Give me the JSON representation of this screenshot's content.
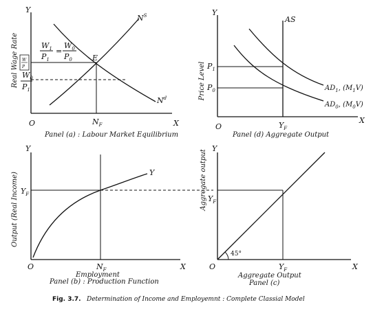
{
  "figure": {
    "number": "Fig. 3.7.",
    "caption": "Determination of Income and Employemnt : Complete Classial Model"
  },
  "panel_a": {
    "caption": "Panel (a) : Labour Market Equilibrium",
    "y_axis_letter": "Y",
    "x_axis_letter": "X",
    "origin": "O",
    "ylabel": "Real Wage Rate",
    "supply_curve": "N",
    "supply_sup": "S",
    "demand_curve": "N",
    "demand_sup": "d",
    "equilibrium": "E",
    "nf": "N",
    "nf_sub": "F",
    "eq_w1": "W",
    "eq_w1_sub": "1",
    "eq_p1": "P",
    "eq_p1_sub": "1",
    "eq_equals": "=",
    "eq_w0": "W",
    "eq_w0_sub": "0",
    "eq_p0": "P",
    "eq_p0_sub": "0",
    "low_w0": "W",
    "low_w0_sub": "0",
    "low_p1": "P",
    "low_p1_sub": "1",
    "tick_w": "W",
    "tick_p": "P"
  },
  "panel_d": {
    "caption": "Panel (d) Aggregate Output",
    "y_axis_letter": "Y",
    "x_axis_letter": "X",
    "origin": "O",
    "ylabel": "Price Level",
    "as_label": "AS",
    "p1": "P",
    "p1_sub": "1",
    "p0": "P",
    "p0_sub": "0",
    "yf": "Y",
    "yf_sub": "F",
    "ad1": "AD",
    "ad1_sub": "1",
    "ad1_args": ", (M",
    "ad1_args_sub": "1",
    "ad1_tail": "V)",
    "ad0": "AD",
    "ad0_sub": "0",
    "ad0_args": ", (M",
    "ad0_args_sub": "0",
    "ad0_tail": "V)"
  },
  "panel_b": {
    "caption": "Panel (b) : Production Function",
    "y_axis_letter": "Y",
    "x_axis_letter": "X",
    "origin": "O",
    "ylabel": "Output (Real Income)",
    "xlabel": "Employment",
    "curve": "Y",
    "yf": "Y",
    "yf_sub": "F",
    "nf": "N",
    "nf_sub": "F"
  },
  "panel_c": {
    "caption": "Panel (c)",
    "y_axis_letter": "Y",
    "x_axis_letter": "X",
    "origin": "O",
    "ylabel": "Aggregate output",
    "xlabel": "Aggregate Output",
    "angle": "45°",
    "yf_y": "Y",
    "yf_y_sub": "F",
    "yf_x": "Y",
    "yf_x_sub": "F"
  }
}
